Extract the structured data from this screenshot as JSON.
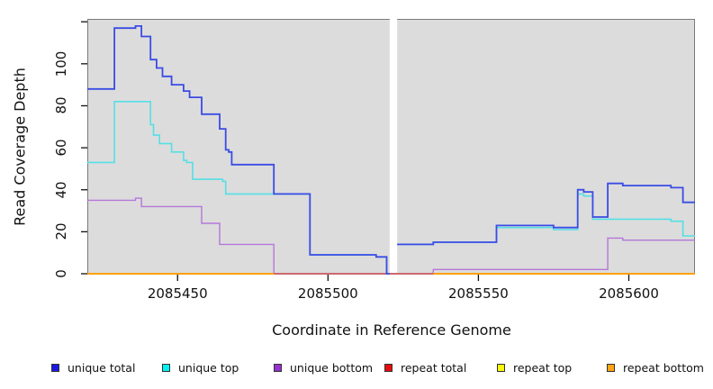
{
  "axes": {
    "x": {
      "title": "Coordinate in Reference Genome",
      "ticks": [
        {
          "value": 2085450,
          "label": "2085450"
        },
        {
          "value": 2085500,
          "label": "2085500"
        },
        {
          "value": 2085550,
          "label": "2085550"
        },
        {
          "value": 2085600,
          "label": "2085600"
        }
      ]
    },
    "y": {
      "title": "Read Coverage Depth",
      "ticks": [
        {
          "value": 0,
          "label": "0"
        },
        {
          "value": 20,
          "label": "20"
        },
        {
          "value": 40,
          "label": "40"
        },
        {
          "value": 60,
          "label": "60"
        },
        {
          "value": 80,
          "label": "80"
        },
        {
          "value": 100,
          "label": "100"
        },
        {
          "value": 120,
          "label": ""
        }
      ]
    }
  },
  "chart_data": {
    "type": "line",
    "line_style": "step",
    "title": "",
    "xlabel": "Coordinate in Reference Genome",
    "ylabel": "Read Coverage Depth",
    "xlim": [
      2085420,
      2085622
    ],
    "ylim": [
      0,
      121
    ],
    "grid": false,
    "panel_background": "#dcdcdc",
    "gap": {
      "from": 2085520.5,
      "to": 2085523,
      "color": "#ffffff"
    },
    "series": [
      {
        "name": "unique bottom",
        "color": "#b477d9",
        "width": 1.4,
        "segments": [
          {
            "points": [
              [
                2085420,
                35
              ],
              [
                2085436,
                36
              ],
              [
                2085438,
                32
              ],
              [
                2085458,
                24
              ],
              [
                2085464,
                14
              ],
              [
                2085482,
                0
              ]
            ],
            "end": 2085520.5
          },
          {
            "points": [
              [
                2085523,
                0
              ],
              [
                2085535,
                2
              ],
              [
                2085593,
                17
              ],
              [
                2085598,
                16
              ]
            ],
            "end": 2085622
          }
        ]
      },
      {
        "name": "repeat top",
        "color": "#f0f00a",
        "width": 1.6,
        "segments": [
          {
            "points": [
              [
                2085420,
                0
              ]
            ],
            "end": 2085622
          }
        ]
      },
      {
        "name": "repeat bottom",
        "color": "#ffa00e",
        "width": 2,
        "segments": [
          {
            "points": [
              [
                2085420,
                0
              ]
            ],
            "end": 2085622
          }
        ]
      },
      {
        "name": "repeat total",
        "color": "#c4617f",
        "width": 1.8,
        "segments": [
          {
            "points": [
              [
                2085482,
                0
              ]
            ],
            "end": 2085535
          }
        ]
      },
      {
        "name": "unique top",
        "color": "#55dfe5",
        "width": 1.6,
        "segments": [
          {
            "points": [
              [
                2085420,
                53
              ],
              [
                2085429,
                82
              ],
              [
                2085441,
                71
              ],
              [
                2085442,
                66
              ],
              [
                2085444,
                62
              ],
              [
                2085448,
                58
              ],
              [
                2085452,
                54
              ],
              [
                2085453,
                53
              ],
              [
                2085455,
                45
              ],
              [
                2085465,
                44
              ],
              [
                2085466,
                38
              ],
              [
                2085494,
                9
              ],
              [
                2085516,
                8
              ],
              [
                2085519.5,
                0
              ]
            ],
            "end": 2085520.5
          },
          {
            "points": [
              [
                2085523,
                14
              ],
              [
                2085535,
                15
              ],
              [
                2085556,
                22
              ],
              [
                2085575,
                21
              ],
              [
                2085583,
                38
              ],
              [
                2085585,
                37
              ],
              [
                2085588,
                26
              ],
              [
                2085614,
                25
              ],
              [
                2085618,
                18
              ]
            ],
            "end": 2085622
          }
        ]
      },
      {
        "name": "unique total",
        "color": "#3a4ce4",
        "width": 1.8,
        "segments": [
          {
            "points": [
              [
                2085420,
                88
              ],
              [
                2085429,
                117
              ],
              [
                2085436,
                118
              ],
              [
                2085438,
                113
              ],
              [
                2085441,
                102
              ],
              [
                2085443,
                98
              ],
              [
                2085445,
                94
              ],
              [
                2085448,
                90
              ],
              [
                2085452,
                87
              ],
              [
                2085454,
                84
              ],
              [
                2085458,
                76
              ],
              [
                2085464,
                69
              ],
              [
                2085466,
                59
              ],
              [
                2085467,
                58
              ],
              [
                2085468,
                52
              ],
              [
                2085482,
                38
              ],
              [
                2085494,
                9
              ],
              [
                2085516,
                8
              ],
              [
                2085519.5,
                0
              ]
            ],
            "end": 2085520.5
          },
          {
            "points": [
              [
                2085523,
                14
              ],
              [
                2085535,
                15
              ],
              [
                2085556,
                23
              ],
              [
                2085575,
                22
              ],
              [
                2085583,
                40
              ],
              [
                2085585,
                39
              ],
              [
                2085588,
                27
              ],
              [
                2085593,
                43
              ],
              [
                2085598,
                42
              ],
              [
                2085614,
                41
              ],
              [
                2085618,
                34
              ]
            ],
            "end": 2085622
          }
        ]
      }
    ]
  },
  "legend": {
    "items": [
      {
        "label": "unique total",
        "color": "#1a1ae0"
      },
      {
        "label": "unique top",
        "color": "#00f2f2"
      },
      {
        "label": "unique bottom",
        "color": "#9632cf"
      },
      {
        "label": "repeat total",
        "color": "#e80c0c"
      },
      {
        "label": "repeat top",
        "color": "#f7f70a"
      },
      {
        "label": "repeat bottom",
        "color": "#ffa513"
      }
    ]
  }
}
